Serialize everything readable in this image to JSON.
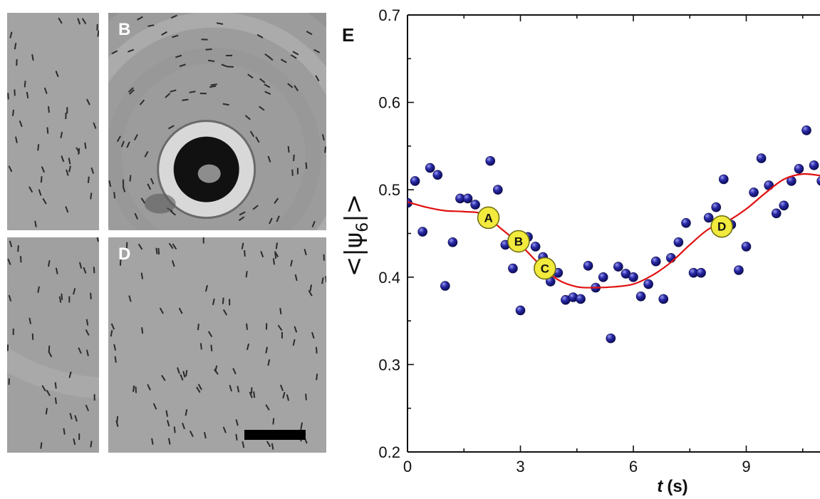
{
  "panels": [
    {
      "id": "A",
      "label": "",
      "seed": 11,
      "vortex": false,
      "ring": false,
      "bg": "#a3a3a3"
    },
    {
      "id": "B",
      "label": "B",
      "seed": 23,
      "vortex": true,
      "ring": true,
      "bg": "#9c9c9c"
    },
    {
      "id": "C",
      "label": "",
      "seed": 37,
      "vortex": false,
      "ring": true,
      "bg": "#a0a0a0"
    },
    {
      "id": "D",
      "label": "D",
      "seed": 51,
      "vortex": false,
      "ring": false,
      "bg": "#a4a4a4",
      "scale_bar": true
    }
  ],
  "chart_data": {
    "type": "scatter",
    "panel_letter": "E",
    "xlabel_italic": "t",
    "xlabel_unit": "(s)",
    "ylabel_text": "<|ψ",
    "ylabel_sub": "6",
    "ylabel_end": "|>",
    "xlim": [
      0,
      11
    ],
    "ylim": [
      0.2,
      0.7
    ],
    "xticks": [
      0,
      3,
      6,
      9
    ],
    "yticks": [
      0.2,
      0.3,
      0.4,
      0.5,
      0.6,
      0.7
    ],
    "xtick_labels": [
      "0",
      "3",
      "6",
      "9"
    ],
    "ytick_labels": [
      "0.2",
      "0.3",
      "0.4",
      "0.5",
      "0.6",
      "0.7"
    ],
    "points": [
      [
        0.0,
        0.485
      ],
      [
        0.2,
        0.51
      ],
      [
        0.4,
        0.452
      ],
      [
        0.6,
        0.525
      ],
      [
        0.8,
        0.517
      ],
      [
        1.0,
        0.39
      ],
      [
        1.2,
        0.44
      ],
      [
        1.4,
        0.49
      ],
      [
        1.6,
        0.49
      ],
      [
        1.8,
        0.483
      ],
      [
        2.0,
        0.47
      ],
      [
        2.2,
        0.533
      ],
      [
        2.4,
        0.5
      ],
      [
        2.6,
        0.437
      ],
      [
        2.8,
        0.41
      ],
      [
        3.0,
        0.362
      ],
      [
        3.2,
        0.446
      ],
      [
        3.4,
        0.435
      ],
      [
        3.6,
        0.423
      ],
      [
        3.8,
        0.395
      ],
      [
        4.0,
        0.405
      ],
      [
        4.2,
        0.374
      ],
      [
        4.4,
        0.377
      ],
      [
        4.6,
        0.375
      ],
      [
        4.8,
        0.413
      ],
      [
        5.0,
        0.388
      ],
      [
        5.2,
        0.4
      ],
      [
        5.4,
        0.33
      ],
      [
        5.6,
        0.412
      ],
      [
        5.8,
        0.404
      ],
      [
        6.0,
        0.4
      ],
      [
        6.2,
        0.378
      ],
      [
        6.4,
        0.392
      ],
      [
        6.6,
        0.418
      ],
      [
        6.8,
        0.375
      ],
      [
        7.0,
        0.422
      ],
      [
        7.2,
        0.44
      ],
      [
        7.4,
        0.462
      ],
      [
        7.6,
        0.405
      ],
      [
        7.8,
        0.405
      ],
      [
        8.0,
        0.468
      ],
      [
        8.2,
        0.48
      ],
      [
        8.4,
        0.512
      ],
      [
        8.6,
        0.46
      ],
      [
        8.8,
        0.408
      ],
      [
        9.0,
        0.435
      ],
      [
        9.2,
        0.497
      ],
      [
        9.4,
        0.536
      ],
      [
        9.6,
        0.505
      ],
      [
        9.8,
        0.473
      ],
      [
        10.0,
        0.482
      ],
      [
        10.2,
        0.51
      ],
      [
        10.4,
        0.524
      ],
      [
        10.6,
        0.568
      ],
      [
        10.8,
        0.528
      ],
      [
        11.0,
        0.51
      ]
    ],
    "fit_curve": [
      [
        0,
        0.486
      ],
      [
        0.5,
        0.48
      ],
      [
        1.0,
        0.476
      ],
      [
        1.5,
        0.475
      ],
      [
        2.0,
        0.472
      ],
      [
        2.5,
        0.455
      ],
      [
        3.0,
        0.437
      ],
      [
        3.5,
        0.415
      ],
      [
        4.0,
        0.397
      ],
      [
        4.5,
        0.389
      ],
      [
        5.0,
        0.388
      ],
      [
        5.5,
        0.389
      ],
      [
        6.0,
        0.392
      ],
      [
        6.5,
        0.402
      ],
      [
        7.0,
        0.417
      ],
      [
        7.5,
        0.437
      ],
      [
        8.0,
        0.455
      ],
      [
        8.5,
        0.464
      ],
      [
        9.0,
        0.478
      ],
      [
        9.5,
        0.496
      ],
      [
        10.0,
        0.512
      ],
      [
        10.5,
        0.518
      ],
      [
        11.0,
        0.516
      ]
    ],
    "markers": [
      {
        "label": "A",
        "x": 2.15,
        "y": 0.468
      },
      {
        "label": "B",
        "x": 2.95,
        "y": 0.441
      },
      {
        "label": "C",
        "x": 3.65,
        "y": 0.41
      },
      {
        "label": "D",
        "x": 8.35,
        "y": 0.458
      }
    ],
    "colors": {
      "point": "#1c1c8e",
      "point_highlight": "#8a8ae6",
      "curve": "#e01010",
      "marker_fill": "#f2ea3c",
      "marker_stroke": "#6b6b10"
    }
  }
}
